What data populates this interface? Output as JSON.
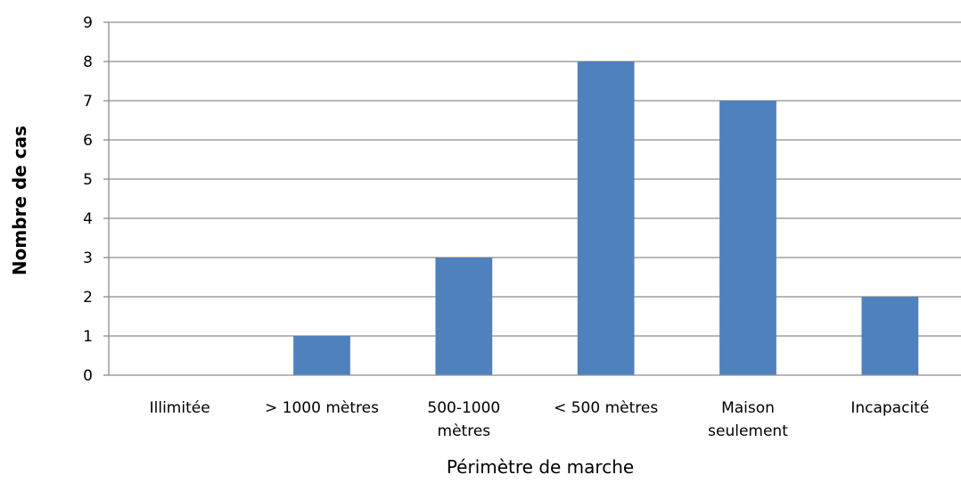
{
  "chart_data": {
    "type": "bar",
    "title": "",
    "categories": [
      [
        "Illimitée"
      ],
      [
        "> 1000 mètres"
      ],
      [
        "500-1000",
        "mètres"
      ],
      [
        "< 500 mètres"
      ],
      [
        "Maison",
        "seulement"
      ],
      [
        "Incapacité"
      ]
    ],
    "values": [
      0,
      1,
      3,
      8,
      7,
      2
    ],
    "xlabel": "Périmètre de marche",
    "ylabel": "Nombre de cas",
    "ylim": [
      0,
      9
    ],
    "yticks": [
      0,
      1,
      2,
      3,
      4,
      5,
      6,
      7,
      8,
      9
    ],
    "grid": true,
    "legend": "none",
    "colors": {
      "bar": "#4f81bd",
      "grid": "#8c8c8c"
    }
  }
}
